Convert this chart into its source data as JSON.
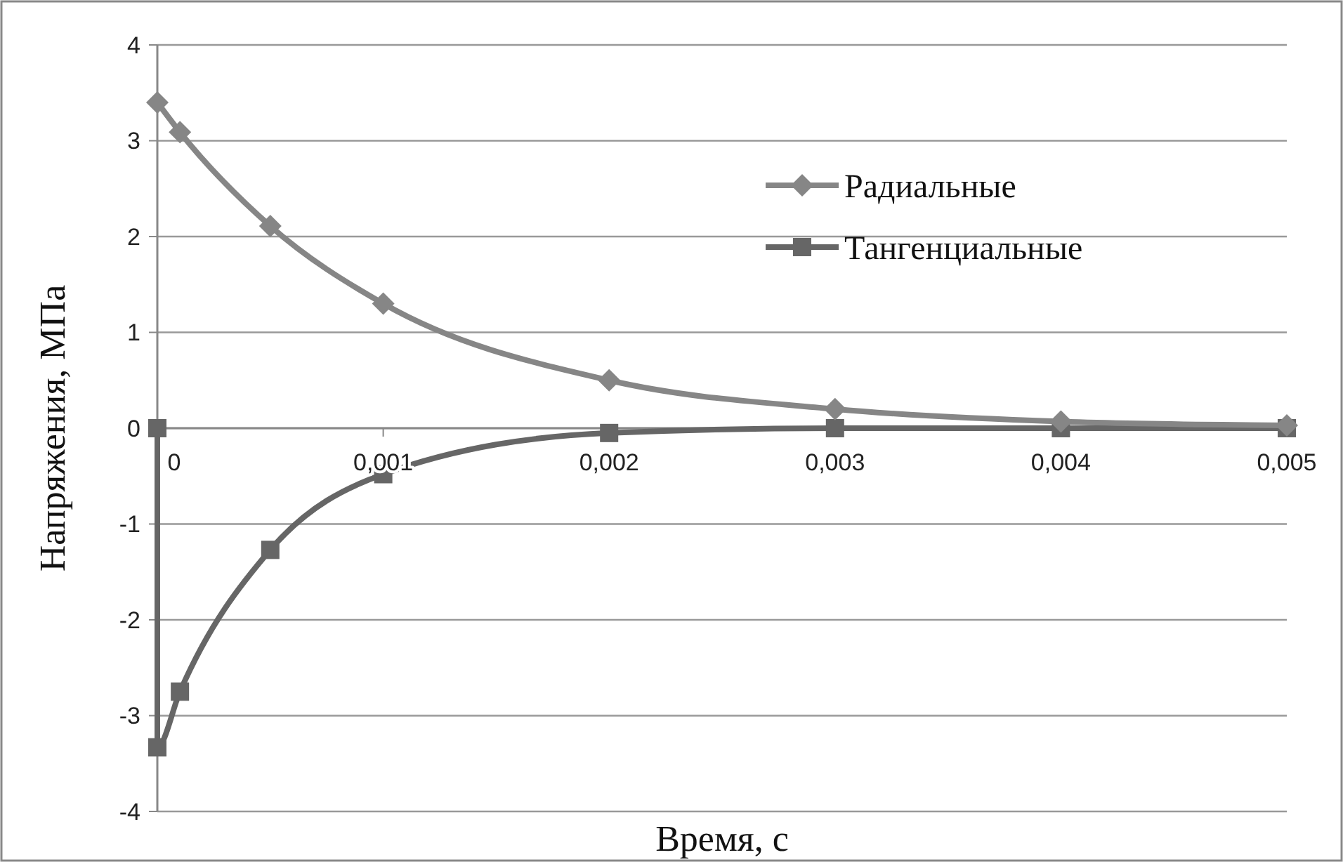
{
  "chart_data": {
    "type": "line",
    "xlabel": "Время, с",
    "ylabel": "Напряжения, МПа",
    "xlim": [
      0,
      0.005
    ],
    "ylim": [
      -4,
      4
    ],
    "xticks": [
      0,
      {
        "value": 0.001,
        "label": "0,001"
      },
      {
        "value": 0.002,
        "label": "0,002"
      },
      {
        "value": 0.003,
        "label": "0,003"
      },
      {
        "value": 0.004,
        "label": "0,004"
      },
      {
        "value": 0.005,
        "label": "0,005"
      }
    ],
    "yticks": [
      -4,
      -3,
      -2,
      -1,
      0,
      1,
      2,
      3,
      4
    ],
    "grid": "y",
    "legend": "top right",
    "series": [
      {
        "name": "Радиальные",
        "color": "#868686",
        "marker": "diamond",
        "x": [
          0,
          0.0001,
          0.0005,
          0.001,
          0.002,
          0.003,
          0.004,
          0.005
        ],
        "values": [
          3.4,
          3.09,
          2.11,
          1.3,
          0.5,
          0.2,
          0.07,
          0.03
        ]
      },
      {
        "name": "Тангенциальные",
        "color": "#666666",
        "marker": "square",
        "x": [
          0,
          0,
          0.0001,
          0.0005,
          0.001,
          0.002,
          0.003,
          0.004,
          0.005
        ],
        "values": [
          0,
          -3.33,
          -2.75,
          -1.27,
          -0.48,
          -0.05,
          0,
          0,
          0
        ]
      }
    ]
  }
}
